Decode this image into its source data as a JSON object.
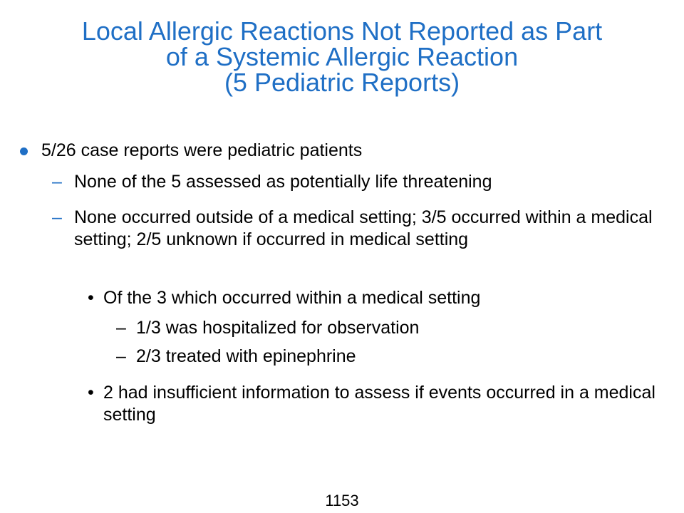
{
  "slide": {
    "title_lines": [
      "Local Allergic Reactions Not Reported as Part",
      "of a Systemic Allergic Reaction",
      "(5 Pediatric Reports)"
    ],
    "bullets": {
      "l1": "5/26 case reports were pediatric patients",
      "l2a": "None of the 5 assessed as potentially life threatening",
      "l2b": "None occurred outside of a medical setting; 3/5 occurred within a medical setting; 2/5 unknown if occurred in medical setting",
      "l3a": "Of the 3 which occurred within a medical setting",
      "l4a": "1/3 was hospitalized for observation",
      "l4b": "2/3 treated with epinephrine",
      "l3b": "2 had insufficient information to assess if events occurred in a medical setting"
    },
    "markers": {
      "dash": "–",
      "bullet": "•"
    },
    "page_number": "1153",
    "colors": {
      "accent": "#1f6fc5",
      "text": "#000000",
      "background": "#ffffff"
    }
  }
}
